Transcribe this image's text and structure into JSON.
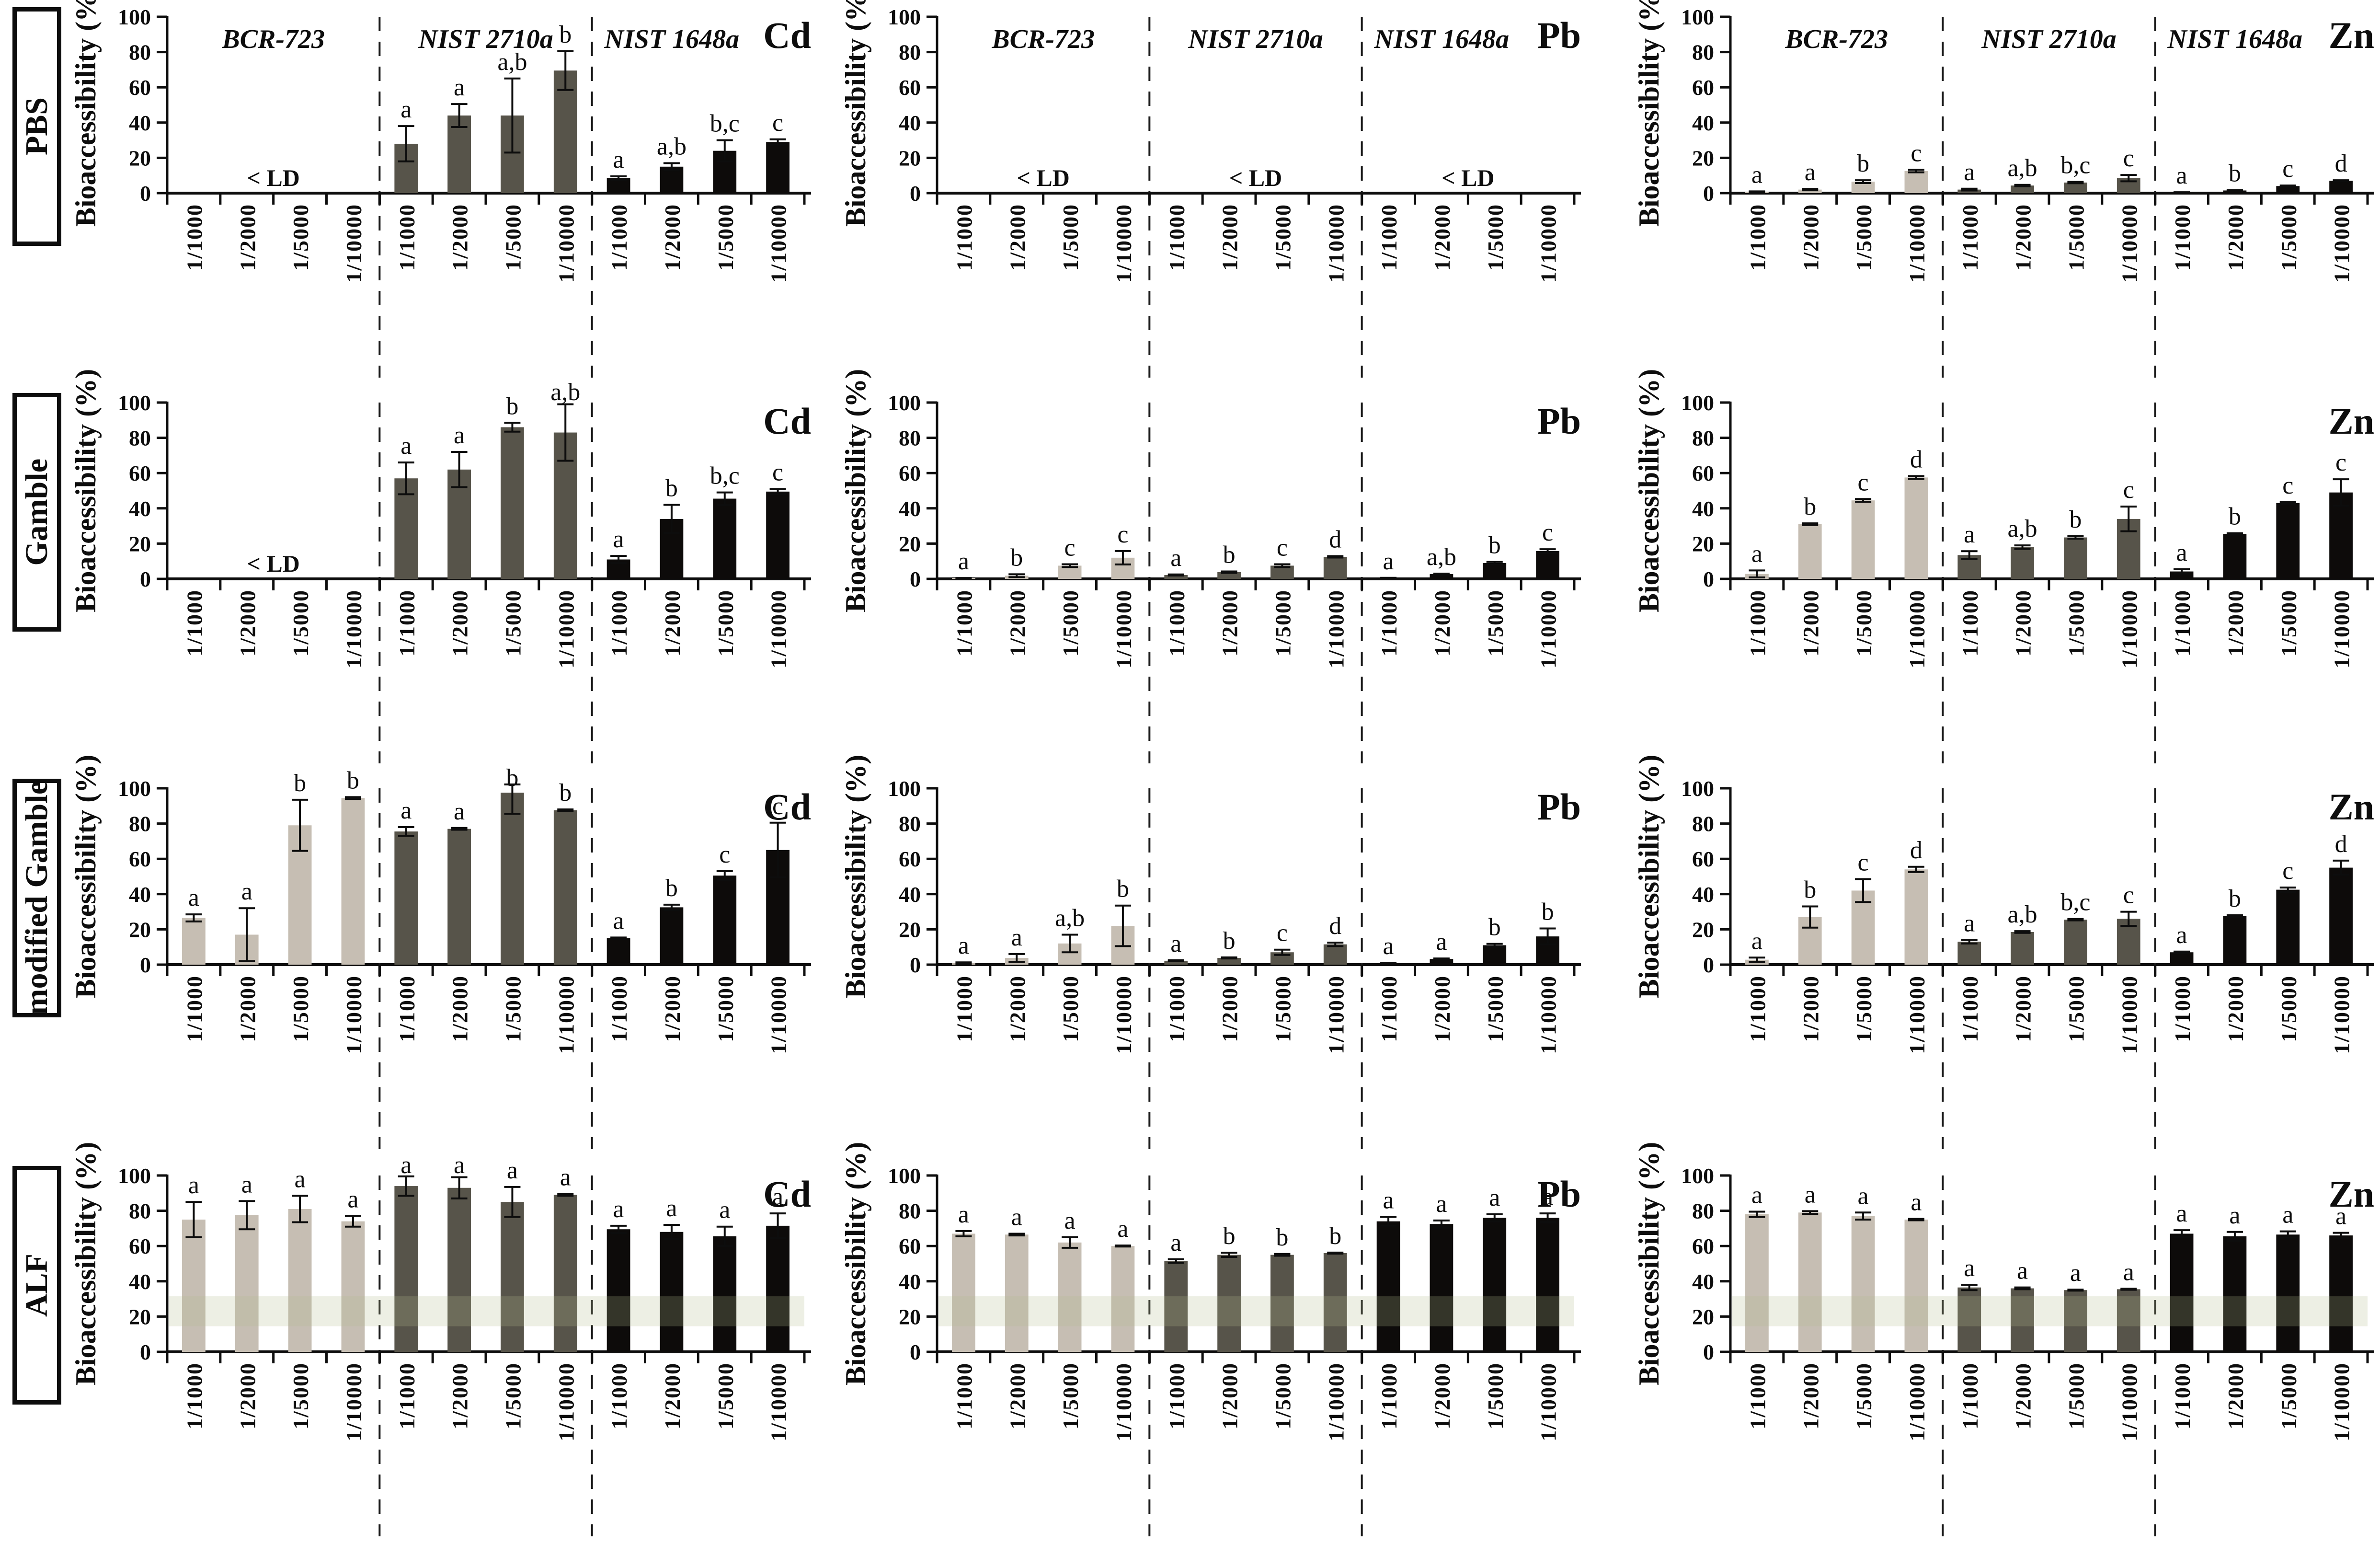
{
  "chart_data": {
    "type": "bar",
    "title": "",
    "ylabel": "Bioaccessibility (%)",
    "ylim": [
      0,
      100
    ],
    "yticks": [
      0,
      20,
      40,
      60,
      80,
      100
    ],
    "rows": [
      "PBS",
      "Gamble",
      "modified Gamble",
      "ALF"
    ],
    "metals": [
      "Cd",
      "Pb",
      "Zn"
    ],
    "groups": [
      "BCR-723",
      "NIST 2710a",
      "NIST 1648a"
    ],
    "categories": [
      "1/1000",
      "1/2000",
      "1/5000",
      "1/10000"
    ],
    "below_detection_text": "< LD",
    "legend_position": "none",
    "grid": false,
    "group_colors": {
      "BCR-723": "#c6beb3",
      "NIST 2710a": "#57544a",
      "NIST 1648a": "#0d0b0a"
    },
    "accent_black": "#0d0d0d",
    "alf_overlay_band": {
      "from": 14.5,
      "to": 31.5,
      "color": "rgba(178,188,142,0.24)"
    },
    "panels": [
      {
        "row": "PBS",
        "metal": "Cd",
        "groups": [
          {
            "name": "BCR-723",
            "below_ld": true
          },
          {
            "name": "NIST 2710a",
            "values": [
              28,
              44,
              44,
              69.5
            ],
            "errors": [
              10,
              6.5,
              21,
              11
            ],
            "letters": [
              "a",
              "a",
              "a,b",
              "b"
            ]
          },
          {
            "name": "NIST 1648a",
            "values": [
              8.5,
              15,
              24,
              29
            ],
            "errors": [
              1,
              2,
              6,
              1.5
            ],
            "letters": [
              "a",
              "a,b",
              "b,c",
              "c"
            ]
          }
        ]
      },
      {
        "row": "PBS",
        "metal": "Pb",
        "groups": [
          {
            "name": "BCR-723",
            "below_ld": true
          },
          {
            "name": "NIST 2710a",
            "below_ld": true
          },
          {
            "name": "NIST 1648a",
            "below_ld": true
          }
        ]
      },
      {
        "row": "PBS",
        "metal": "Zn",
        "groups": [
          {
            "name": "BCR-723",
            "values": [
              0.7,
              2,
              6.5,
              12.5
            ],
            "errors": [
              0.3,
              0.4,
              0.8,
              0.7
            ],
            "letters": [
              "a",
              "a",
              "b",
              "c"
            ]
          },
          {
            "name": "NIST 2710a",
            "values": [
              2,
              4.3,
              6,
              8.5
            ],
            "errors": [
              0.5,
              0.4,
              0.4,
              1.8
            ],
            "letters": [
              "a",
              "a,b",
              "b,c",
              "c"
            ]
          },
          {
            "name": "NIST 1648a",
            "values": [
              0.4,
              1.5,
              4,
              7
            ],
            "errors": [
              0.1,
              0.2,
              0.3,
              0.3
            ],
            "letters": [
              "a",
              "b",
              "c",
              "d"
            ]
          }
        ]
      },
      {
        "row": "Gamble",
        "metal": "Cd",
        "groups": [
          {
            "name": "BCR-723",
            "below_ld": true
          },
          {
            "name": "NIST 2710a",
            "values": [
              57,
              62,
              86,
              83
            ],
            "errors": [
              9,
              10,
              2.5,
              16
            ],
            "letters": [
              "a",
              "a",
              "b",
              "a,b"
            ]
          },
          {
            "name": "NIST 1648a",
            "values": [
              11,
              34,
              45.5,
              49.5
            ],
            "errors": [
              2,
              8,
              3.5,
              1.5
            ],
            "letters": [
              "a",
              "b",
              "b,c",
              "c"
            ]
          }
        ]
      },
      {
        "row": "Gamble",
        "metal": "Pb",
        "groups": [
          {
            "name": "BCR-723",
            "values": [
              0.3,
              1.8,
              7.5,
              12
            ],
            "errors": [
              0.2,
              0.8,
              0.8,
              3.8
            ],
            "letters": [
              "a",
              "b",
              "c",
              "c"
            ]
          },
          {
            "name": "NIST 2710a",
            "values": [
              2.2,
              3.8,
              7.5,
              12.5
            ],
            "errors": [
              0.3,
              0.4,
              0.8,
              0.4
            ],
            "letters": [
              "a",
              "b",
              "c",
              "d"
            ]
          },
          {
            "name": "NIST 1648a",
            "values": [
              0.4,
              2.7,
              9,
              15.8
            ],
            "errors": [
              0.2,
              0.3,
              0.6,
              1
            ],
            "letters": [
              "a",
              "a,b",
              "b",
              "c"
            ]
          }
        ]
      },
      {
        "row": "Gamble",
        "metal": "Zn",
        "groups": [
          {
            "name": "BCR-723",
            "values": [
              2.8,
              31,
              44.5,
              57.5
            ],
            "errors": [
              2,
              0.5,
              0.8,
              0.8
            ],
            "letters": [
              "a",
              "b",
              "c",
              "d"
            ]
          },
          {
            "name": "NIST 2710a",
            "values": [
              13.5,
              18,
              23.5,
              34
            ],
            "errors": [
              2.2,
              1,
              0.7,
              7
            ],
            "letters": [
              "a",
              "a,b",
              "b",
              "c"
            ]
          },
          {
            "name": "NIST 1648a",
            "values": [
              4.2,
              25.5,
              43,
              49
            ],
            "errors": [
              1.3,
              0.4,
              0.5,
              7.5
            ],
            "letters": [
              "a",
              "b",
              "c",
              "c"
            ]
          }
        ]
      },
      {
        "row": "modified Gamble",
        "metal": "Cd",
        "groups": [
          {
            "name": "BCR-723",
            "values": [
              26.5,
              17,
              79,
              94.5
            ],
            "errors": [
              2,
              15,
              14.5,
              0.5
            ],
            "letters": [
              "a",
              "a",
              "b",
              "b"
            ]
          },
          {
            "name": "NIST 2710a",
            "values": [
              75.5,
              77,
              97.5,
              87.5
            ],
            "errors": [
              2.5,
              0.5,
              12,
              0.5
            ],
            "letters": [
              "a",
              "a",
              "b",
              "b"
            ]
          },
          {
            "name": "NIST 1648a",
            "values": [
              15,
              32.5,
              50.5,
              65
            ],
            "errors": [
              0.4,
              1.5,
              2.5,
              15.5
            ],
            "letters": [
              "a",
              "b",
              "c",
              "c"
            ]
          }
        ]
      },
      {
        "row": "modified Gamble",
        "metal": "Pb",
        "groups": [
          {
            "name": "BCR-723",
            "values": [
              0.8,
              3.8,
              12,
              22
            ],
            "errors": [
              0.5,
              2.2,
              5,
              11.5
            ],
            "letters": [
              "a",
              "a",
              "a,b",
              "b"
            ]
          },
          {
            "name": "NIST 2710a",
            "values": [
              2.2,
              3.8,
              7,
              11.5
            ],
            "errors": [
              0.3,
              0.3,
              1.5,
              1
            ],
            "letters": [
              "a",
              "b",
              "c",
              "d"
            ]
          },
          {
            "name": "NIST 1648a",
            "values": [
              0.8,
              3.2,
              11,
              16
            ],
            "errors": [
              0.3,
              0.3,
              0.8,
              4.5
            ],
            "letters": [
              "a",
              "a",
              "b",
              "b"
            ]
          }
        ]
      },
      {
        "row": "modified Gamble",
        "metal": "Zn",
        "groups": [
          {
            "name": "BCR-723",
            "values": [
              2.8,
              27,
              42,
              54
            ],
            "errors": [
              1.2,
              6,
              6.5,
              1.5
            ],
            "letters": [
              "a",
              "b",
              "c",
              "d"
            ]
          },
          {
            "name": "NIST 2710a",
            "values": [
              13,
              18.5,
              25.5,
              26
            ],
            "errors": [
              1,
              0.5,
              0.4,
              4
            ],
            "letters": [
              "a",
              "a,b",
              "b,c",
              "c"
            ]
          },
          {
            "name": "NIST 1648a",
            "values": [
              7,
              27.5,
              42.5,
              55
            ],
            "errors": [
              0.4,
              0.5,
              1.2,
              4
            ],
            "letters": [
              "a",
              "b",
              "c",
              "d"
            ]
          }
        ]
      },
      {
        "row": "ALF",
        "metal": "Cd",
        "groups": [
          {
            "name": "BCR-723",
            "values": [
              75,
              77.5,
              81,
              74
            ],
            "errors": [
              10,
              8,
              7.5,
              3
            ],
            "letters": [
              "a",
              "a",
              "a",
              "a"
            ]
          },
          {
            "name": "NIST 2710a",
            "values": [
              94,
              93,
              85,
              89
            ],
            "errors": [
              5.5,
              6,
              8.5,
              0.5
            ],
            "letters": [
              "a",
              "a",
              "a",
              "a"
            ]
          },
          {
            "name": "NIST 1648a",
            "values": [
              69.5,
              68,
              65.5,
              71.5
            ],
            "errors": [
              2,
              4,
              5.5,
              7
            ],
            "letters": [
              "a",
              "a",
              "a",
              "a"
            ]
          }
        ]
      },
      {
        "row": "ALF",
        "metal": "Pb",
        "groups": [
          {
            "name": "BCR-723",
            "values": [
              67,
              66.5,
              62,
              60
            ],
            "errors": [
              1.5,
              0.5,
              3,
              0.3
            ],
            "letters": [
              "a",
              "a",
              "a",
              "a"
            ]
          },
          {
            "name": "NIST 2710a",
            "values": [
              51.5,
              55,
              55,
              56
            ],
            "errors": [
              1,
              1.2,
              0.5,
              0.3
            ],
            "letters": [
              "a",
              "b",
              "b",
              "b"
            ]
          },
          {
            "name": "NIST 1648a",
            "values": [
              74,
              72.5,
              76,
              76
            ],
            "errors": [
              2.5,
              2,
              2,
              2.5
            ],
            "letters": [
              "a",
              "a",
              "a",
              "a"
            ]
          }
        ]
      },
      {
        "row": "ALF",
        "metal": "Zn",
        "groups": [
          {
            "name": "BCR-723",
            "values": [
              78,
              79,
              77,
              75
            ],
            "errors": [
              1.5,
              0.8,
              2,
              0.4
            ],
            "letters": [
              "a",
              "a",
              "a",
              "a"
            ]
          },
          {
            "name": "NIST 2710a",
            "values": [
              36.5,
              36,
              35,
              35.5
            ],
            "errors": [
              1.5,
              0.5,
              0.3,
              0.3
            ],
            "letters": [
              "a",
              "a",
              "a",
              "a"
            ]
          },
          {
            "name": "NIST 1648a",
            "values": [
              67,
              65.5,
              66.5,
              66
            ],
            "errors": [
              2,
              2.5,
              1.8,
              1.5
            ],
            "letters": [
              "a",
              "a",
              "a",
              "a"
            ]
          }
        ]
      }
    ]
  }
}
